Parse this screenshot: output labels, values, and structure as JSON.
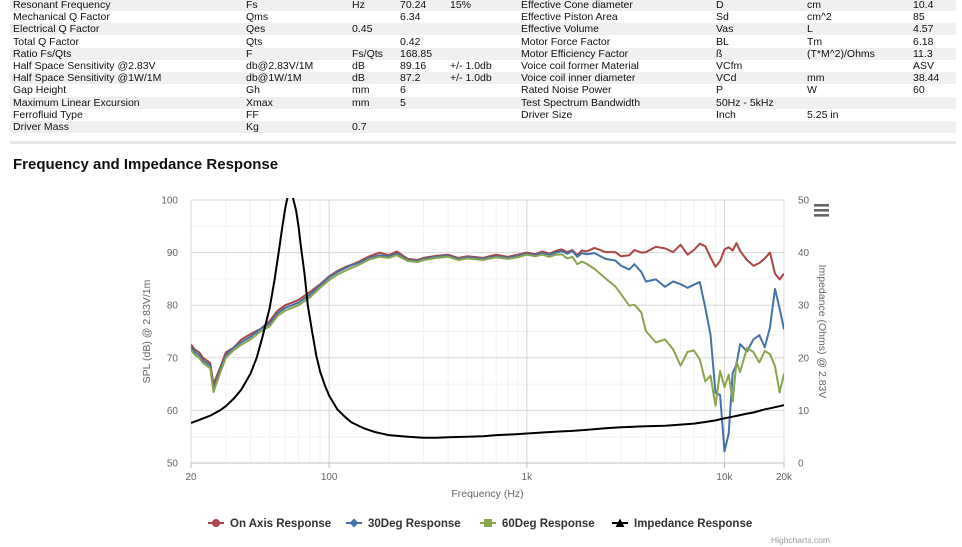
{
  "spec_table": {
    "rows": [
      [
        "Resonant Frequency",
        "Fs",
        "Hz",
        "70.24",
        "15%",
        "Effective Cone diameter",
        "D",
        "cm",
        "10.4"
      ],
      [
        "Mechanical Q Factor",
        "Qms",
        "",
        "6.34",
        "",
        "Effective Piston Area",
        "Sd",
        "cm^2",
        "85"
      ],
      [
        "Electrical Q Factor",
        "Qes",
        "0.45",
        "",
        "",
        "Effective Volume",
        "Vas",
        "L",
        "4.57"
      ],
      [
        "Total Q Factor",
        "Qts",
        "",
        "0.42",
        "",
        "Motor Force Factor",
        "BL",
        "Tm",
        "6.18"
      ],
      [
        "Ratio Fs/Qts",
        "F",
        "Fs/Qts",
        "168.85",
        "",
        "Motor Efficiency Factor",
        "ß",
        "(T*M^2)/Ohms",
        "11.3"
      ],
      [
        "Half Space Sensitivity @2.83V",
        "db@2.83V/1M",
        "dB",
        "89.16",
        "+/- 1.0db",
        "Voice coil former Material",
        "VCfm",
        "",
        "ASV"
      ],
      [
        "Half Space Sensitivity @1W/1M",
        "db@1W/1M",
        "dB",
        "87.2",
        "+/- 1.0db",
        "Voice coil inner diameter",
        "VCd",
        "mm",
        "38.44"
      ],
      [
        "Gap Height",
        "Gh",
        "mm",
        "6",
        "",
        "Rated Noise Power",
        "P",
        "W",
        "60"
      ],
      [
        "Maximum Linear Excursion",
        "Xmax",
        "mm",
        "5",
        "",
        "Test Spectrum Bandwidth",
        "50Hz - 5kHz",
        "",
        ""
      ],
      [
        "Ferrofluid Type",
        "FF",
        "",
        "",
        "",
        "Driver Size",
        "Inch",
        "5.25 in",
        ""
      ],
      [
        "Driver Mass",
        "Kg",
        "0.7",
        "",
        "",
        "",
        "",
        "",
        ""
      ]
    ]
  },
  "section_title": "Frequency and Impedance Response",
  "chart_data": {
    "type": "line",
    "xlabel": "Frequency (Hz)",
    "ylabel": "SPL (dB) @ 2.83V/1m",
    "y2label": "Impedance (Ohms) @ 2.83V",
    "x_scale": "log",
    "xlim": [
      20,
      20000
    ],
    "ylim": [
      50,
      100
    ],
    "y2lim": [
      0,
      50
    ],
    "x_ticks": [
      20,
      100,
      1000,
      10000,
      20000
    ],
    "x_tick_labels": [
      "20",
      "100",
      "1k",
      "10k",
      "20k"
    ],
    "y_ticks": [
      50,
      60,
      70,
      80,
      90,
      100
    ],
    "y2_ticks": [
      0,
      10,
      20,
      30,
      40,
      50
    ],
    "grid": true,
    "legend_position": "bottom",
    "series": [
      {
        "name": "On Axis Response",
        "color": "#aa4643",
        "axis": "left",
        "x": [
          20,
          21,
          22,
          23,
          24,
          25,
          26,
          28,
          30,
          33,
          36,
          40,
          45,
          50,
          55,
          60,
          65,
          70,
          80,
          90,
          100,
          110,
          120,
          130,
          140,
          150,
          160,
          180,
          200,
          220,
          250,
          280,
          300,
          350,
          400,
          450,
          500,
          600,
          700,
          800,
          900,
          1000,
          1100,
          1200,
          1300,
          1400,
          1500,
          1600,
          1700,
          1800,
          1900,
          2000,
          2200,
          2500,
          2800,
          3000,
          3300,
          3500,
          3800,
          4000,
          4500,
          5000,
          5500,
          6000,
          6500,
          7000,
          7500,
          8000,
          8500,
          9000,
          9500,
          10000,
          10500,
          11000,
          11500,
          12000,
          13000,
          14000,
          15000,
          16000,
          17000,
          18000,
          19000,
          20000
        ],
        "y": [
          72.5,
          71.5,
          71,
          70,
          69.5,
          69,
          65,
          68,
          71,
          72,
          73.5,
          74.5,
          75.5,
          77,
          79,
          80,
          80.5,
          81,
          82.5,
          84,
          85.5,
          86.5,
          87.2,
          87.7,
          88.2,
          88.8,
          89.3,
          90,
          89.5,
          90.2,
          88.8,
          88.6,
          89,
          89.4,
          89.6,
          89,
          89.3,
          89,
          89.6,
          89.2,
          89.6,
          90,
          89.7,
          90.2,
          89.8,
          90.3,
          90.6,
          90.1,
          90.5,
          89.5,
          90.4,
          90.2,
          90.9,
          90.1,
          90.1,
          89.3,
          89.5,
          90.5,
          90,
          90.1,
          91.1,
          90.8,
          90.1,
          91.5,
          89.6,
          90.5,
          91.7,
          91.2,
          89.1,
          87.3,
          88.4,
          90.6,
          91,
          90.4,
          91.8,
          90.3,
          88.6,
          87.5,
          88,
          88.9,
          90,
          86,
          84.9,
          86
        ]
      },
      {
        "name": "30Deg Response",
        "color": "#4572a7",
        "axis": "left",
        "x": [
          20,
          21,
          22,
          23,
          24,
          25,
          26,
          28,
          30,
          33,
          36,
          40,
          45,
          50,
          55,
          60,
          65,
          70,
          80,
          90,
          100,
          110,
          120,
          130,
          140,
          150,
          160,
          180,
          200,
          220,
          250,
          280,
          300,
          350,
          400,
          450,
          500,
          600,
          700,
          800,
          900,
          1000,
          1100,
          1200,
          1300,
          1400,
          1500,
          1600,
          1700,
          1800,
          1900,
          2000,
          2200,
          2500,
          2800,
          3000,
          3300,
          3500,
          3800,
          4000,
          4500,
          5000,
          5500,
          6000,
          6500,
          7000,
          7500,
          8000,
          8500,
          9000,
          9500,
          10000,
          10500,
          11000,
          11500,
          12000,
          13000,
          14000,
          15000,
          16000,
          17000,
          18000,
          19000,
          20000
        ],
        "y": [
          72,
          71,
          70.5,
          69.5,
          69,
          68.5,
          64,
          67.5,
          70.5,
          72,
          73,
          74,
          75.5,
          76.5,
          78.5,
          79.5,
          80,
          80.5,
          82,
          83.8,
          85.3,
          86.3,
          87,
          87.6,
          88,
          88.5,
          89,
          89.5,
          89.3,
          89.8,
          88.6,
          88.4,
          88.8,
          89.2,
          89.4,
          88.8,
          89.1,
          88.8,
          89.3,
          89,
          89.4,
          89.8,
          89.5,
          89.9,
          89.6,
          90,
          90.3,
          89.8,
          90.3,
          89.2,
          89.9,
          89.7,
          89.9,
          88.8,
          88.5,
          87.5,
          86.8,
          87.8,
          86.3,
          84.5,
          84.9,
          83.5,
          84.5,
          84,
          83.3,
          83.9,
          84.4,
          79.5,
          74.4,
          63.3,
          62.9,
          52.2,
          55.6,
          67.1,
          68.8,
          72.6,
          71.2,
          73.5,
          74.3,
          72,
          75.8,
          83.1,
          79.4,
          75.4
        ]
      },
      {
        "name": "60Deg Response",
        "color": "#89a54e",
        "axis": "left",
        "x": [
          20,
          21,
          22,
          23,
          24,
          25,
          26,
          28,
          30,
          33,
          36,
          40,
          45,
          50,
          55,
          60,
          65,
          70,
          80,
          90,
          100,
          110,
          120,
          130,
          140,
          150,
          160,
          180,
          200,
          220,
          250,
          280,
          300,
          350,
          400,
          450,
          500,
          600,
          700,
          800,
          900,
          1000,
          1100,
          1200,
          1300,
          1400,
          1500,
          1600,
          1700,
          1800,
          1900,
          2000,
          2200,
          2500,
          2800,
          3000,
          3300,
          3500,
          3800,
          4000,
          4500,
          5000,
          5500,
          6000,
          6500,
          7000,
          7500,
          8000,
          8500,
          9000,
          9500,
          10000,
          10500,
          11000,
          11500,
          12000,
          13000,
          14000,
          15000,
          16000,
          17000,
          18000,
          19000,
          20000
        ],
        "y": [
          71.5,
          70.5,
          70,
          69,
          68.5,
          68,
          63.5,
          67,
          70,
          71.5,
          72.5,
          73.5,
          75,
          76,
          78,
          79,
          79.5,
          80,
          81.5,
          83.3,
          84.8,
          85.8,
          86.5,
          87.1,
          87.6,
          88.2,
          88.7,
          89.2,
          89,
          89.5,
          88.4,
          88.2,
          88.6,
          89,
          89.2,
          88.6,
          88.9,
          88.6,
          89.1,
          88.8,
          89.1,
          89.6,
          89.3,
          89.6,
          89.2,
          89.6,
          89.7,
          88.9,
          89.2,
          87.8,
          88.3,
          87.9,
          86.9,
          85.1,
          83.6,
          82.1,
          79.9,
          80.1,
          78.6,
          75.1,
          72.9,
          73.5,
          71.6,
          68.5,
          71.1,
          71.4,
          69.7,
          65.5,
          66.6,
          60.9,
          67.5,
          64.4,
          66.8,
          61.7,
          69.3,
          67.3,
          71.9,
          71.1,
          69.1,
          71.3,
          70.7,
          68.4,
          63.4,
          67
        ]
      },
      {
        "name": "Impedance Response",
        "color": "#000000",
        "axis": "right",
        "x": [
          20,
          22,
          25,
          28,
          30,
          33,
          36,
          40,
          43,
          46,
          50,
          53,
          56,
          58,
          60,
          62,
          65,
          68,
          70,
          72,
          75,
          78,
          82,
          86,
          90,
          95,
          100,
          110,
          120,
          130,
          150,
          170,
          200,
          250,
          300,
          350,
          400,
          500,
          600,
          700,
          800,
          900,
          1000,
          1200,
          1500,
          1700,
          2000,
          2500,
          3000,
          3500,
          4000,
          5000,
          6000,
          7000,
          8000,
          9000,
          10000,
          11000,
          12000,
          13000,
          14000,
          15000,
          16000,
          17000,
          18000,
          19000,
          20000
        ],
        "y": [
          7.6,
          8.2,
          9,
          10,
          10.8,
          12.3,
          14,
          17,
          20,
          24,
          29.5,
          35,
          41,
          45,
          48.5,
          51,
          51,
          48,
          45,
          41,
          36,
          30,
          25,
          20.5,
          17.4,
          14.8,
          12.8,
          10.2,
          8.8,
          7.7,
          6.6,
          5.9,
          5.3,
          5,
          4.8,
          4.8,
          4.9,
          5,
          5.1,
          5.3,
          5.4,
          5.5,
          5.6,
          5.8,
          6,
          6.1,
          6.3,
          6.6,
          6.8,
          6.9,
          7,
          7.1,
          7.3,
          7.5,
          7.8,
          8.1,
          8.5,
          8.8,
          9.1,
          9.4,
          9.6,
          9.9,
          10.2,
          10.4,
          10.6,
          10.8,
          11
        ]
      }
    ],
    "credit": "Highcharts.com",
    "menu_icon": "hamburger-menu-icon"
  }
}
